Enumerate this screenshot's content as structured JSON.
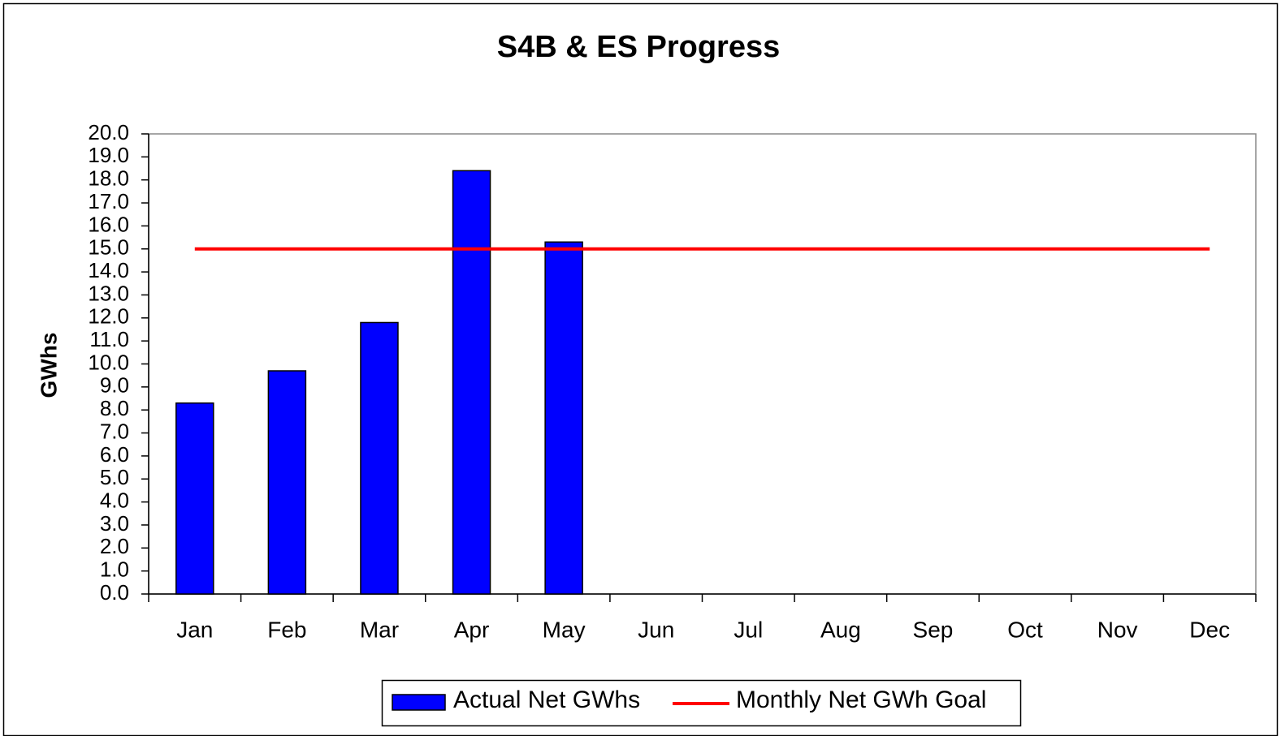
{
  "chart_data": {
    "type": "bar",
    "title": "S4B & ES Progress",
    "y_label": "GWhs",
    "categories": [
      "Jan",
      "Feb",
      "Mar",
      "Apr",
      "May",
      "Jun",
      "Jul",
      "Aug",
      "Sep",
      "Oct",
      "Nov",
      "Dec"
    ],
    "series": [
      {
        "name": "Actual Net GWhs",
        "type": "bar",
        "color": "#0000ff",
        "values": [
          8.3,
          9.7,
          11.8,
          18.4,
          15.3,
          null,
          null,
          null,
          null,
          null,
          null,
          null
        ]
      },
      {
        "name": "Monthly Net GWh Goal",
        "type": "line",
        "color": "#ff0000",
        "values": [
          15,
          15,
          15,
          15,
          15,
          15,
          15,
          15,
          15,
          15,
          15,
          15
        ]
      }
    ],
    "ylim": [
      0,
      20
    ],
    "yticks": [
      {
        "value": 0,
        "label": "0.0"
      },
      {
        "value": 1,
        "label": "1.0"
      },
      {
        "value": 2,
        "label": "2.0"
      },
      {
        "value": 3,
        "label": "3.0"
      },
      {
        "value": 4,
        "label": "4.0"
      },
      {
        "value": 5,
        "label": "5.0"
      },
      {
        "value": 6,
        "label": "6.0"
      },
      {
        "value": 7,
        "label": "7.0"
      },
      {
        "value": 8,
        "label": "8.0"
      },
      {
        "value": 9,
        "label": "9.0"
      },
      {
        "value": 10,
        "label": "10.0"
      },
      {
        "value": 11,
        "label": "11.0"
      },
      {
        "value": 12,
        "label": "12.0"
      },
      {
        "value": 13,
        "label": "13.0"
      },
      {
        "value": 14,
        "label": "14.0"
      },
      {
        "value": 15,
        "label": "15.0"
      },
      {
        "value": 16,
        "label": "16.0"
      },
      {
        "value": 17,
        "label": "17.0"
      },
      {
        "value": 18,
        "label": "18.0"
      },
      {
        "value": 19,
        "label": "19.0"
      },
      {
        "value": 20,
        "label": "20.0"
      }
    ],
    "grid": false,
    "legend": "bottom"
  }
}
